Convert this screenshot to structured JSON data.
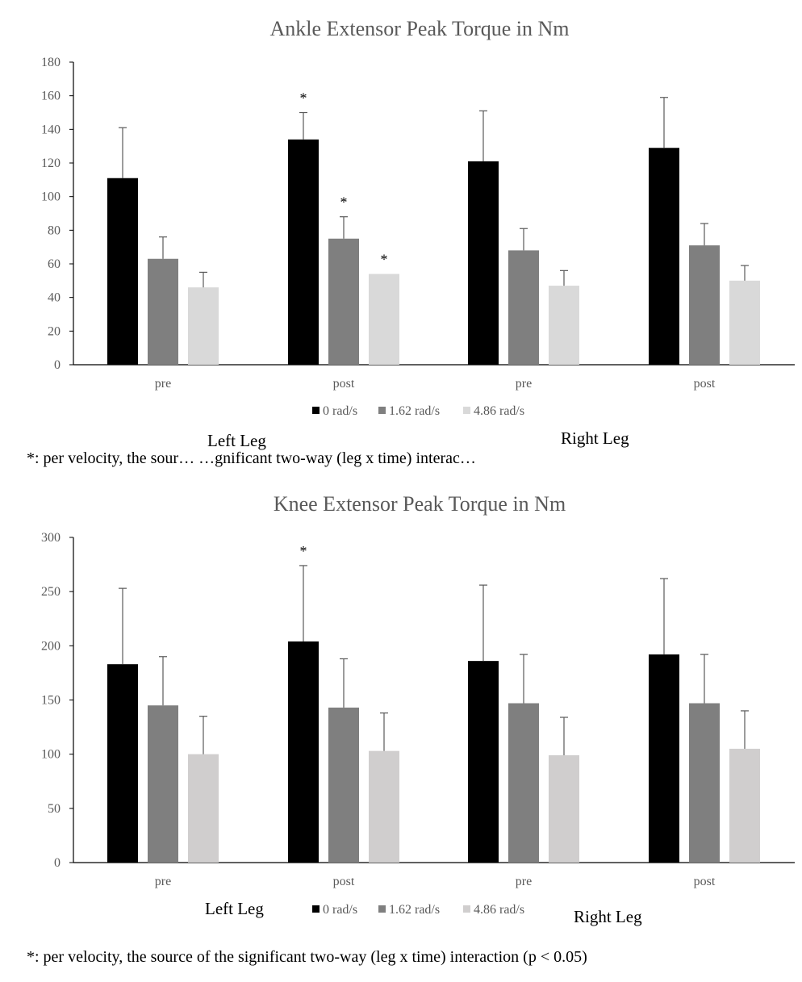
{
  "charts": [
    {
      "title": "Ankle Extensor Peak Torque in Nm",
      "ylim": [
        0,
        180
      ],
      "ytick_labels": [
        "0",
        "20",
        "40",
        "60",
        "80",
        "100",
        "120",
        "140",
        "160",
        "180"
      ],
      "categories": [
        "pre",
        "post",
        "pre",
        "post"
      ],
      "legend": [
        "0 rad/s",
        "1.62 rad/s",
        "4.86 rad/s"
      ],
      "colors": [
        "#000000",
        "#7f7f7f",
        "#d9d9d9"
      ],
      "group_labels": [
        "Left Leg",
        "Right Leg"
      ],
      "footnote": "*: per velocity, the sour… …gnificant two-way (leg x time) interac…"
    },
    {
      "title": "Knee Extensor Peak Torque in Nm",
      "ylim": [
        0,
        300
      ],
      "ytick_labels": [
        "0",
        "50",
        "100",
        "150",
        "200",
        "250",
        "300"
      ],
      "categories": [
        "pre",
        "post",
        "pre",
        "post"
      ],
      "legend": [
        "0 rad/s",
        "1.62 rad/s",
        "4.86 rad/s"
      ],
      "colors": [
        "#000000",
        "#7f7f7f",
        "#d0cece"
      ],
      "group_labels": [
        "Left Leg",
        "Right Leg"
      ],
      "footnote": "*: per velocity, the source of the significant two-way (leg x time) interaction (p < 0.05)"
    }
  ],
  "chart_data": [
    {
      "type": "bar",
      "title": "Ankle Extensor Peak Torque in Nm",
      "categories": [
        "pre",
        "post",
        "pre",
        "post"
      ],
      "groups": [
        "Left Leg",
        "Right Leg"
      ],
      "ylim": [
        0,
        180
      ],
      "grid": false,
      "legend_position": "bottom",
      "series": [
        {
          "name": "0 rad/s",
          "color": "#000000",
          "values": [
            111,
            134,
            121,
            129
          ],
          "error": [
            30,
            16,
            30,
            30
          ],
          "significant": [
            false,
            true,
            false,
            false
          ]
        },
        {
          "name": "1.62 rad/s",
          "color": "#7f7f7f",
          "values": [
            63,
            75,
            68,
            71
          ],
          "error": [
            13,
            13,
            13,
            13
          ],
          "significant": [
            false,
            true,
            false,
            false
          ]
        },
        {
          "name": "4.86 rad/s",
          "color": "#d9d9d9",
          "values": [
            46,
            54,
            47,
            50
          ],
          "error": [
            9,
            0,
            9,
            9
          ],
          "significant": [
            false,
            true,
            false,
            false
          ]
        }
      ]
    },
    {
      "type": "bar",
      "title": "Knee Extensor Peak Torque in Nm",
      "categories": [
        "pre",
        "post",
        "pre",
        "post"
      ],
      "groups": [
        "Left Leg",
        "Right Leg"
      ],
      "ylim": [
        0,
        300
      ],
      "grid": false,
      "legend_position": "bottom",
      "series": [
        {
          "name": "0 rad/s",
          "color": "#000000",
          "values": [
            183,
            204,
            186,
            192
          ],
          "error": [
            70,
            70,
            70,
            70
          ],
          "significant": [
            false,
            true,
            false,
            false
          ]
        },
        {
          "name": "1.62 rad/s",
          "color": "#7f7f7f",
          "values": [
            145,
            143,
            147,
            147
          ],
          "error": [
            45,
            45,
            45,
            45
          ],
          "significant": [
            false,
            false,
            false,
            false
          ]
        },
        {
          "name": "4.86 rad/s",
          "color": "#d0cece",
          "values": [
            100,
            103,
            99,
            105
          ],
          "error": [
            35,
            35,
            35,
            35
          ],
          "significant": [
            false,
            false,
            false,
            false
          ]
        }
      ]
    }
  ]
}
